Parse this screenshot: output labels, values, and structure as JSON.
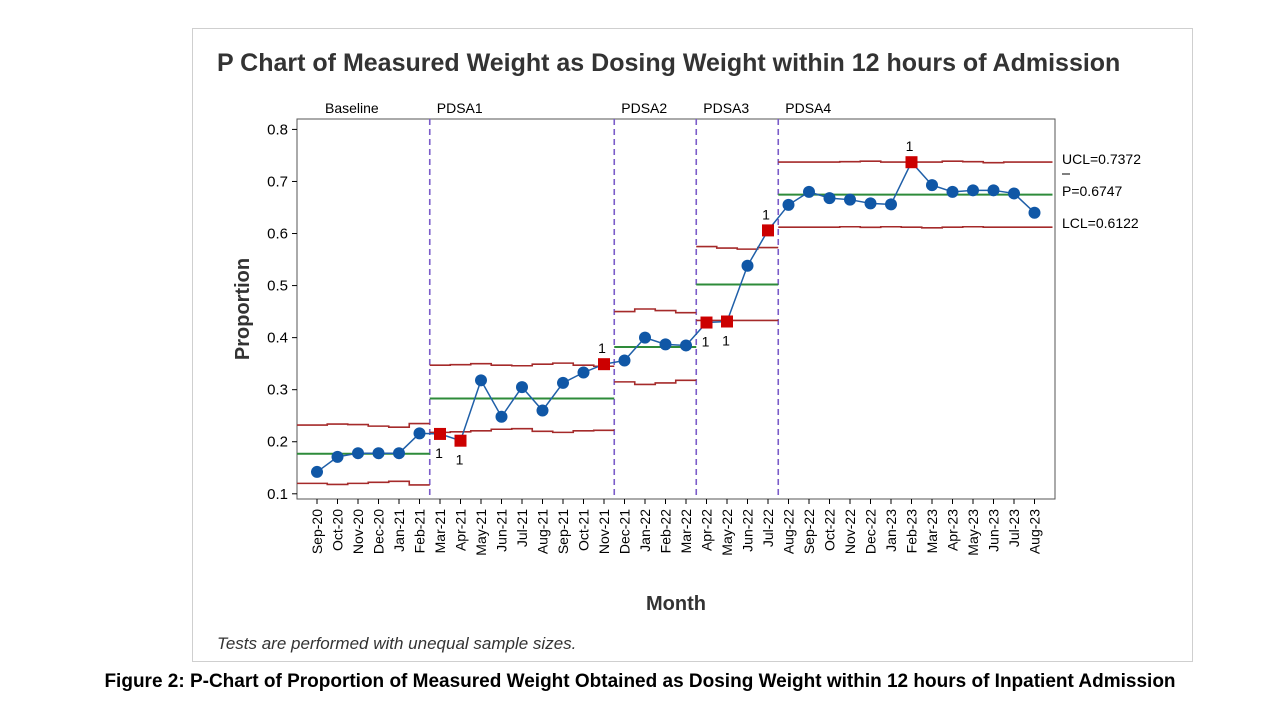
{
  "figure_caption": "Figure 2: P-Chart of Proportion of Measured Weight Obtained as Dosing Weight within 12 hours of Inpatient Admission",
  "chart_data": {
    "type": "line",
    "subtype": "p-chart",
    "title": "P Chart of Measured Weight as Dosing Weight within 12 hours of Admission",
    "xlabel": "Month",
    "ylabel": "Proportion",
    "footnote": "Tests are performed with unequal sample sizes.",
    "ylim": [
      0.09,
      0.82
    ],
    "yticks": [
      0.1,
      0.2,
      0.3,
      0.4,
      0.5,
      0.6,
      0.7,
      0.8
    ],
    "ytick_labels": [
      "0.1",
      "0.2",
      "0.3",
      "0.4",
      "0.5",
      "0.6",
      "0.7",
      "0.8"
    ],
    "grid": false,
    "categories": [
      "Sep-20",
      "Oct-20",
      "Nov-20",
      "Dec-20",
      "Jan-21",
      "Feb-21",
      "Mar-21",
      "Apr-21",
      "May-21",
      "Jun-21",
      "Jul-21",
      "Aug-21",
      "Sep-21",
      "Oct-21",
      "Nov-21",
      "Dec-21",
      "Jan-22",
      "Feb-22",
      "Mar-22",
      "Apr-22",
      "May-22",
      "Jun-22",
      "Jul-22",
      "Aug-22",
      "Sep-22",
      "Oct-22",
      "Nov-22",
      "Dec-22",
      "Jan-23",
      "Feb-23",
      "Mar-23",
      "Apr-23",
      "May-23",
      "Jun-23",
      "Jul-23",
      "Aug-23"
    ],
    "series": [
      {
        "values": [
          0.142,
          0.171,
          0.178,
          0.178,
          0.178,
          0.216,
          0.215,
          0.202,
          0.318,
          0.248,
          0.305,
          0.26,
          0.313,
          0.333,
          0.349,
          0.356,
          0.4,
          0.387,
          0.385,
          0.429,
          0.431,
          0.538,
          0.606,
          0.655,
          0.68,
          0.668,
          0.665,
          0.658,
          0.656,
          0.737,
          0.693,
          0.68,
          0.683,
          0.683,
          0.677,
          0.64
        ],
        "flagged_indices": [
          6,
          7,
          14,
          19,
          20,
          22,
          29
        ],
        "flag_label": "1"
      }
    ],
    "phases": [
      {
        "label": "Baseline",
        "start": 0,
        "end": 5,
        "center": 0.177,
        "ucl": [
          0.232,
          0.234,
          0.233,
          0.23,
          0.228,
          0.235
        ],
        "lcl": [
          0.12,
          0.118,
          0.12,
          0.122,
          0.124,
          0.117
        ]
      },
      {
        "label": "PDSA1",
        "start": 6,
        "end": 14,
        "center": 0.283,
        "ucl": [
          0.347,
          0.348,
          0.35,
          0.347,
          0.346,
          0.349,
          0.351,
          0.347,
          0.345
        ],
        "lcl": [
          0.218,
          0.219,
          0.221,
          0.224,
          0.225,
          0.22,
          0.218,
          0.221,
          0.222
        ]
      },
      {
        "label": "PDSA2",
        "start": 15,
        "end": 18,
        "center": 0.382,
        "ucl": [
          0.45,
          0.455,
          0.452,
          0.448
        ],
        "lcl": [
          0.315,
          0.31,
          0.313,
          0.318
        ]
      },
      {
        "label": "PDSA3",
        "start": 19,
        "end": 22,
        "center": 0.502,
        "ucl": [
          0.575,
          0.572,
          0.57,
          0.573
        ],
        "lcl": [
          0.433,
          0.433,
          0.433,
          0.433
        ]
      },
      {
        "label": "PDSA4",
        "start": 23,
        "end": 35,
        "center": 0.6747,
        "ucl": [
          0.7372,
          0.7372,
          0.7372,
          0.738,
          0.739,
          0.7372,
          0.7372,
          0.7372,
          0.739,
          0.738,
          0.736,
          0.7372,
          0.7372
        ],
        "lcl": [
          0.6122,
          0.6122,
          0.6122,
          0.613,
          0.612,
          0.613,
          0.6122,
          0.611,
          0.6122,
          0.613,
          0.6122,
          0.6122,
          0.6122
        ]
      }
    ],
    "right_labels": {
      "ucl": "UCL=0.7372",
      "center": "P=0.6747",
      "lcl": "LCL=0.6122"
    },
    "colors": {
      "line": "#1f5fa8",
      "point": "#1057a6",
      "flag": "#cc0000",
      "center_line": "#2e8b3a",
      "limit_line": "#a52a2a",
      "phase_divider": "#7b5cc9",
      "axis": "#000000",
      "title": "#333333"
    }
  }
}
